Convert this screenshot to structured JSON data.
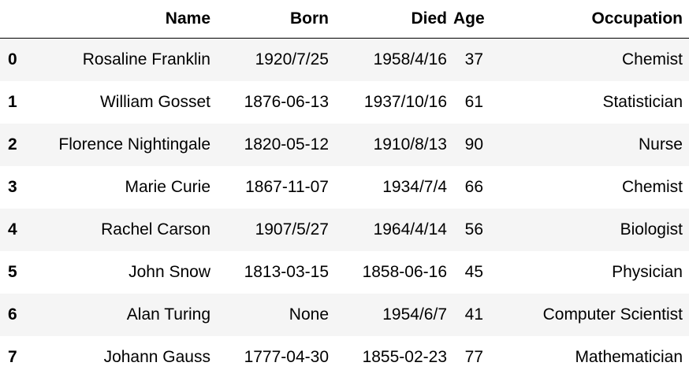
{
  "columns": {
    "index": "",
    "name": "Name",
    "born": "Born",
    "died": "Died",
    "age": "Age",
    "occupation": "Occupation"
  },
  "rows": [
    {
      "index": "0",
      "name": "Rosaline Franklin",
      "born": "1920/7/25",
      "died": "1958/4/16",
      "age": "37",
      "occupation": "Chemist"
    },
    {
      "index": "1",
      "name": "William Gosset",
      "born": "1876-06-13",
      "died": "1937/10/16",
      "age": "61",
      "occupation": "Statistician"
    },
    {
      "index": "2",
      "name": "Florence Nightingale",
      "born": "1820-05-12",
      "died": "1910/8/13",
      "age": "90",
      "occupation": "Nurse"
    },
    {
      "index": "3",
      "name": "Marie Curie",
      "born": "1867-11-07",
      "died": "1934/7/4",
      "age": "66",
      "occupation": "Chemist"
    },
    {
      "index": "4",
      "name": "Rachel Carson",
      "born": "1907/5/27",
      "died": "1964/4/14",
      "age": "56",
      "occupation": "Biologist"
    },
    {
      "index": "5",
      "name": "John Snow",
      "born": "1813-03-15",
      "died": "1858-06-16",
      "age": "45",
      "occupation": "Physician"
    },
    {
      "index": "6",
      "name": "Alan Turing",
      "born": "None",
      "died": "1954/6/7",
      "age": "41",
      "occupation": "Computer Scientist"
    },
    {
      "index": "7",
      "name": "Johann Gauss",
      "born": "1777-04-30",
      "died": "1855-02-23",
      "age": "77",
      "occupation": "Mathematician"
    }
  ]
}
